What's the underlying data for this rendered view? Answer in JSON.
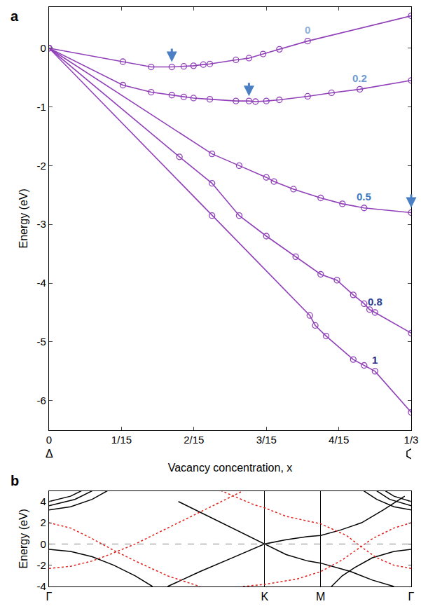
{
  "chart_data": [
    {
      "type": "line",
      "panel": "a",
      "x_label": "Vacancy concentration, x",
      "y_label": "Energy (eV)",
      "xlim": [
        0,
        0.3333
      ],
      "ylim": [
        -6.5,
        0.7
      ],
      "xticks": [
        0,
        {
          "value": 0.0667,
          "label": "1/15"
        },
        {
          "value": 0.1333,
          "label": "2/15"
        },
        {
          "value": 0.2,
          "label": "3/15"
        },
        {
          "value": 0.2667,
          "label": "4/15"
        },
        {
          "value": 0.3333,
          "label": "1/3"
        }
      ],
      "yticks": [
        0,
        -1,
        -2,
        -3,
        -4,
        -5,
        -6
      ],
      "marker": "circle-open",
      "x_annotations": [
        {
          "x": 0,
          "text": "Δ"
        }
      ],
      "series": [
        {
          "name": "0",
          "color": "#9040b8",
          "x": [
            0,
            0.068,
            0.094,
            0.113,
            0.124,
            0.133,
            0.142,
            0.148,
            0.172,
            0.184,
            0.197,
            0.212,
            0.238,
            0.3333
          ],
          "values": [
            0,
            -0.23,
            -0.32,
            -0.32,
            -0.31,
            -0.3,
            -0.28,
            -0.27,
            -0.2,
            -0.17,
            -0.1,
            -0.02,
            0.12,
            0.55
          ]
        },
        {
          "name": "0.2",
          "color": "#9040b8",
          "x": [
            0,
            0.068,
            0.094,
            0.113,
            0.124,
            0.133,
            0.148,
            0.172,
            0.184,
            0.19,
            0.2,
            0.212,
            0.238,
            0.26,
            0.286,
            0.3333
          ],
          "values": [
            0,
            -0.63,
            -0.75,
            -0.8,
            -0.83,
            -0.85,
            -0.87,
            -0.9,
            -0.9,
            -0.91,
            -0.9,
            -0.88,
            -0.82,
            -0.76,
            -0.7,
            -0.55
          ]
        },
        {
          "name": "0.5",
          "color": "#9040b8",
          "x": [
            0,
            0.15,
            0.175,
            0.2,
            0.207,
            0.225,
            0.25,
            0.27,
            0.29,
            0.3333
          ],
          "values": [
            0,
            -1.8,
            -2.0,
            -2.2,
            -2.27,
            -2.4,
            -2.55,
            -2.65,
            -2.72,
            -2.8
          ]
        },
        {
          "name": "0.8",
          "color": "#9040b8",
          "x": [
            0,
            0.12,
            0.15,
            0.175,
            0.2,
            0.227,
            0.25,
            0.265,
            0.28,
            0.29,
            0.295,
            0.3,
            0.3333
          ],
          "values": [
            0,
            -1.85,
            -2.3,
            -2.85,
            -3.2,
            -3.55,
            -3.85,
            -3.95,
            -4.2,
            -4.35,
            -4.45,
            -4.5,
            -4.85
          ]
        },
        {
          "name": "1",
          "color": "#9040b8",
          "x": [
            0,
            0.15,
            0.24,
            0.245,
            0.255,
            0.28,
            0.29,
            0.3,
            0.3333
          ],
          "values": [
            0,
            -2.85,
            -4.55,
            -4.72,
            -4.9,
            -5.3,
            -5.4,
            -5.5,
            -6.2
          ]
        }
      ],
      "arrows": [
        {
          "x": 0.113,
          "y": -0.32
        },
        {
          "x": 0.184,
          "y": -0.9
        },
        {
          "x": 0.3333,
          "y": -2.8
        }
      ]
    },
    {
      "type": "line",
      "panel": "b",
      "y_label": "Energy (eV)",
      "xlim": [
        0,
        1.68
      ],
      "ylim": [
        -4,
        5
      ],
      "xticks": [
        {
          "value": 0,
          "label": "Γ"
        },
        {
          "value": 1,
          "label": "K"
        },
        {
          "value": 1.26,
          "label": "M"
        },
        {
          "value": 1.68,
          "label": "Γ"
        }
      ],
      "yticks": [
        -4,
        -2,
        0,
        2,
        4
      ],
      "grid": "x",
      "hline": 0,
      "series": [
        {
          "color": "#000000",
          "line_style": "solid",
          "x": [
            0.55,
            0.7,
            0.85,
            1,
            1.1,
            1.2,
            1.26,
            1.4,
            1.5,
            1.6
          ],
          "values": [
            -4,
            -2.6,
            -1.3,
            0,
            -1.0,
            -1.6,
            -1.8,
            -2.6,
            -3.4,
            -4
          ]
        },
        {
          "color": "#000000",
          "line_style": "solid",
          "x": [
            0.6,
            0.8,
            1,
            1.1,
            1.2,
            1.26,
            1.35,
            1.45,
            1.55,
            1.65
          ],
          "values": [
            4,
            2,
            0,
            0.4,
            0.7,
            0.8,
            1.3,
            2,
            3.2,
            4.5
          ]
        },
        {
          "color": "#000000",
          "line_style": "solid",
          "x": [
            0,
            0.1,
            0.2,
            0.3,
            0.4,
            0.48
          ],
          "values": [
            -0.5,
            -0.7,
            -1.2,
            -2,
            -3,
            -4
          ]
        },
        {
          "color": "#000000",
          "line_style": "solid",
          "x": [
            1.68,
            1.6,
            1.5,
            1.42,
            1.36,
            1.31
          ],
          "values": [
            -0.5,
            -0.7,
            -1.3,
            -2.2,
            -3,
            -4
          ]
        },
        {
          "color": "#000000",
          "line_style": "solid",
          "x": [
            0,
            0.1,
            0.2,
            0.27
          ],
          "values": [
            3.2,
            3.5,
            4.2,
            5
          ]
        },
        {
          "color": "#000000",
          "line_style": "solid",
          "x": [
            0,
            0.12,
            0.2
          ],
          "values": [
            3.6,
            4.2,
            5
          ]
        },
        {
          "color": "#000000",
          "line_style": "solid",
          "x": [
            0,
            0.1,
            0.15
          ],
          "values": [
            4,
            4.5,
            5
          ]
        },
        {
          "color": "#000000",
          "line_style": "solid",
          "x": [
            1.68,
            1.6,
            1.52,
            1.46
          ],
          "values": [
            3.2,
            3.5,
            4.2,
            5
          ]
        },
        {
          "color": "#000000",
          "line_style": "solid",
          "x": [
            1.68,
            1.58,
            1.52
          ],
          "values": [
            3.6,
            4.2,
            5
          ]
        },
        {
          "color": "#000000",
          "line_style": "solid",
          "x": [
            1.68,
            1.6,
            1.56
          ],
          "values": [
            4,
            4.5,
            5
          ]
        },
        {
          "color": "#e0201b",
          "line_style": "dot",
          "x": [
            0,
            0.1,
            0.2,
            0.3,
            0.4,
            0.55,
            0.7
          ],
          "values": [
            2,
            1.5,
            0.5,
            -0.6,
            -1.6,
            -3,
            -4
          ]
        },
        {
          "color": "#e0201b",
          "line_style": "dot",
          "x": [
            0,
            0.1,
            0.2,
            0.28,
            0.4,
            0.55,
            0.7,
            0.85,
            0.9
          ],
          "values": [
            -2.3,
            -2.1,
            -1.6,
            -1.0,
            0,
            1.5,
            3,
            4.5,
            5
          ]
        },
        {
          "color": "#e0201b",
          "line_style": "dot",
          "x": [
            1.68,
            1.6,
            1.5,
            1.43,
            1.36,
            1.26,
            1.15,
            1,
            0.9
          ],
          "values": [
            2,
            1.5,
            0.5,
            -0.5,
            -1.5,
            -2.6,
            -3.3,
            -3.8,
            -4
          ]
        },
        {
          "color": "#e0201b",
          "line_style": "dot",
          "x": [
            1.68,
            1.6,
            1.52,
            1.45,
            1.38,
            1.26,
            1.1,
            1,
            0.95,
            0.8
          ],
          "values": [
            -2.3,
            -2.0,
            -1.3,
            -0.3,
            0.8,
            1.9,
            2.6,
            3.4,
            3.7,
            5
          ]
        }
      ]
    }
  ]
}
